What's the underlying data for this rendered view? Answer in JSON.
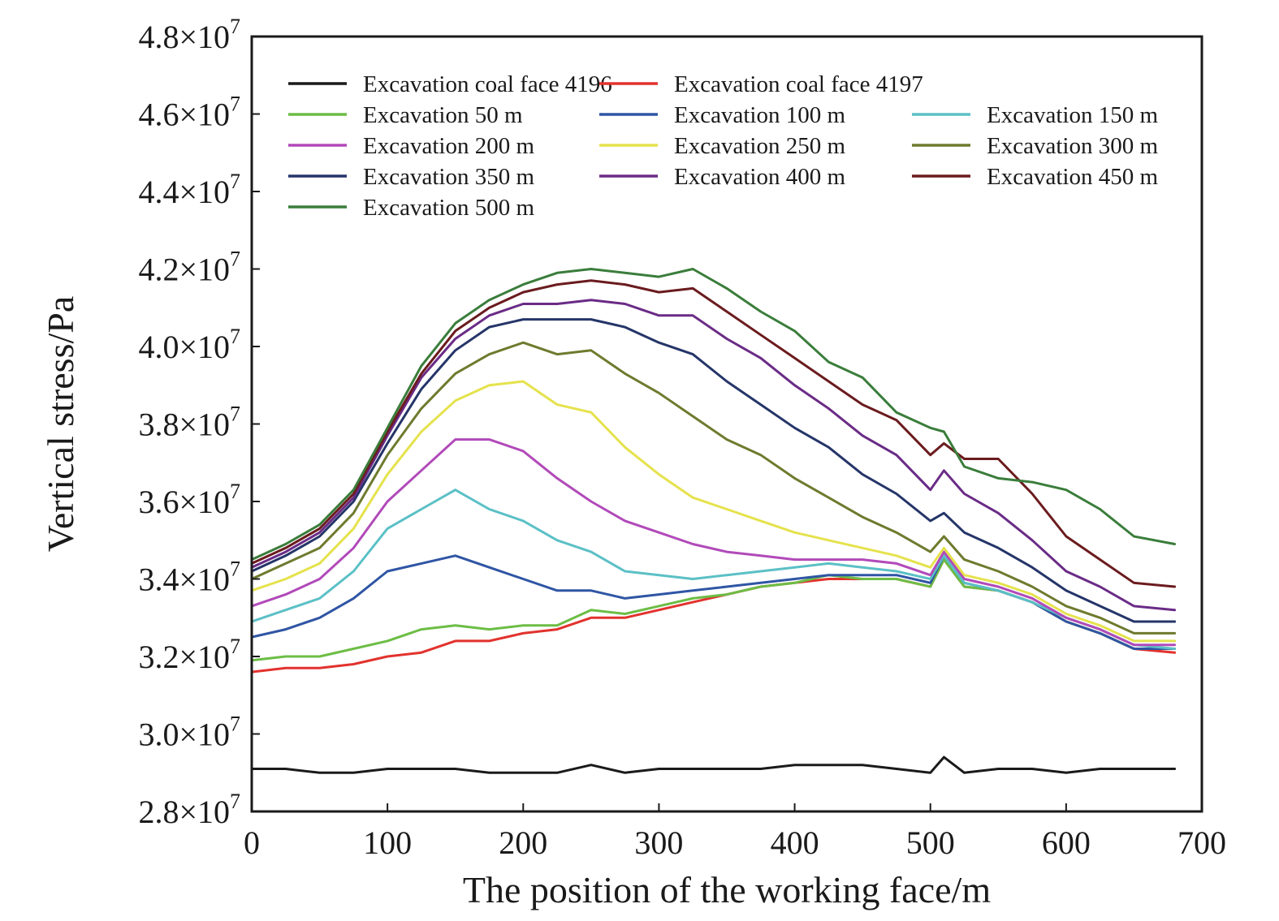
{
  "chart_data": {
    "type": "line",
    "xlabel": "The position of the working face/m",
    "ylabel": "Vertical stress/Pa",
    "xlim": [
      0,
      700
    ],
    "ylim": [
      28000000.0,
      48000000.0
    ],
    "x_ticks": [
      0,
      100,
      200,
      300,
      400,
      500,
      600,
      700
    ],
    "y_ticks": [
      28000000.0,
      30000000.0,
      32000000.0,
      34000000.0,
      36000000.0,
      38000000.0,
      40000000.0,
      42000000.0,
      44000000.0,
      46000000.0,
      48000000.0
    ],
    "y_tick_labels": [
      {
        "mantissa": "2.8×10",
        "exponent": "7"
      },
      {
        "mantissa": "3.0×10",
        "exponent": "7"
      },
      {
        "mantissa": "3.2×10",
        "exponent": "7"
      },
      {
        "mantissa": "3.4×10",
        "exponent": "7"
      },
      {
        "mantissa": "3.6×10",
        "exponent": "7"
      },
      {
        "mantissa": "3.8×10",
        "exponent": "7"
      },
      {
        "mantissa": "4.0×10",
        "exponent": "7"
      },
      {
        "mantissa": "4.2×10",
        "exponent": "7"
      },
      {
        "mantissa": "4.4×10",
        "exponent": "7"
      },
      {
        "mantissa": "4.6×10",
        "exponent": "7"
      },
      {
        "mantissa": "4.8×10",
        "exponent": "7"
      }
    ],
    "grid": false,
    "legend_position": "top-left",
    "x": [
      0,
      25,
      50,
      75,
      100,
      125,
      150,
      175,
      200,
      225,
      250,
      275,
      300,
      325,
      350,
      375,
      400,
      425,
      450,
      475,
      500,
      510,
      525,
      550,
      575,
      600,
      625,
      650,
      680
    ],
    "series": [
      {
        "name": "Excavation coal face 4196",
        "color": "#1a1a1a",
        "values": [
          29100000.0,
          29100000.0,
          29000000.0,
          29000000.0,
          29100000.0,
          29100000.0,
          29100000.0,
          29000000.0,
          29000000.0,
          29000000.0,
          29200000.0,
          29000000.0,
          29100000.0,
          29100000.0,
          29100000.0,
          29100000.0,
          29200000.0,
          29200000.0,
          29200000.0,
          29100000.0,
          29000000.0,
          29400000.0,
          29000000.0,
          29100000.0,
          29100000.0,
          29000000.0,
          29100000.0,
          29100000.0,
          29100000.0
        ]
      },
      {
        "name": "Excavation coal face 4197",
        "color": "#e2322d",
        "values": [
          31600000.0,
          31700000.0,
          31700000.0,
          31800000.0,
          32000000.0,
          32100000.0,
          32400000.0,
          32400000.0,
          32600000.0,
          32700000.0,
          33000000.0,
          33000000.0,
          33200000.0,
          33400000.0,
          33600000.0,
          33800000.0,
          33900000.0,
          34000000.0,
          34000000.0,
          34000000.0,
          33800000.0,
          34500000.0,
          33800000.0,
          33700000.0,
          33400000.0,
          32900000.0,
          32600000.0,
          32200000.0,
          32100000.0
        ]
      },
      {
        "name": "Excavation 50 m",
        "color": "#6cbd45",
        "values": [
          31900000.0,
          32000000.0,
          32000000.0,
          32200000.0,
          32400000.0,
          32700000.0,
          32800000.0,
          32700000.0,
          32800000.0,
          32800000.0,
          33200000.0,
          33100000.0,
          33300000.0,
          33500000.0,
          33600000.0,
          33800000.0,
          33900000.0,
          34100000.0,
          34000000.0,
          34000000.0,
          33800000.0,
          34500000.0,
          33800000.0,
          33700000.0,
          33400000.0,
          32900000.0,
          32600000.0,
          32200000.0,
          32200000.0
        ]
      },
      {
        "name": "Excavation 100 m",
        "color": "#2f55a4",
        "values": [
          32500000.0,
          32700000.0,
          33000000.0,
          33500000.0,
          34200000.0,
          34400000.0,
          34600000.0,
          34300000.0,
          34000000.0,
          33700000.0,
          33700000.0,
          33500000.0,
          33600000.0,
          33700000.0,
          33800000.0,
          33900000.0,
          34000000.0,
          34100000.0,
          34100000.0,
          34100000.0,
          33900000.0,
          34600000.0,
          33900000.0,
          33700000.0,
          33400000.0,
          32900000.0,
          32600000.0,
          32200000.0,
          32200000.0
        ]
      },
      {
        "name": "Excavation 150 m",
        "color": "#5bc0c6",
        "values": [
          32900000.0,
          33200000.0,
          33500000.0,
          34200000.0,
          35300000.0,
          35800000.0,
          36300000.0,
          35800000.0,
          35500000.0,
          35000000.0,
          34700000.0,
          34200000.0,
          34100000.0,
          34000000.0,
          34100000.0,
          34200000.0,
          34300000.0,
          34400000.0,
          34300000.0,
          34200000.0,
          34000000.0,
          34600000.0,
          33900000.0,
          33700000.0,
          33400000.0,
          33000000.0,
          32700000.0,
          32300000.0,
          32200000.0
        ]
      },
      {
        "name": "Excavation 200 m",
        "color": "#b14ab9",
        "values": [
          33300000.0,
          33600000.0,
          34000000.0,
          34800000.0,
          36000000.0,
          36800000.0,
          37600000.0,
          37600000.0,
          37300000.0,
          36600000.0,
          36000000.0,
          35500000.0,
          35200000.0,
          34900000.0,
          34700000.0,
          34600000.0,
          34500000.0,
          34500000.0,
          34500000.0,
          34400000.0,
          34100000.0,
          34700000.0,
          34000000.0,
          33800000.0,
          33500000.0,
          33000000.0,
          32700000.0,
          32300000.0,
          32300000.0
        ]
      },
      {
        "name": "Excavation 250 m",
        "color": "#e5e24d",
        "values": [
          33700000.0,
          34000000.0,
          34400000.0,
          35300000.0,
          36700000.0,
          37800000.0,
          38600000.0,
          39000000.0,
          39100000.0,
          38500000.0,
          38300000.0,
          37400000.0,
          36700000.0,
          36100000.0,
          35800000.0,
          35500000.0,
          35200000.0,
          35000000.0,
          34800000.0,
          34600000.0,
          34300000.0,
          34800000.0,
          34100000.0,
          33900000.0,
          33600000.0,
          33100000.0,
          32800000.0,
          32400000.0,
          32400000.0
        ]
      },
      {
        "name": "Excavation 300 m",
        "color": "#6f7a2e",
        "values": [
          34000000.0,
          34400000.0,
          34800000.0,
          35700000.0,
          37200000.0,
          38400000.0,
          39300000.0,
          39800000.0,
          40100000.0,
          39800000.0,
          39900000.0,
          39300000.0,
          38800000.0,
          38200000.0,
          37600000.0,
          37200000.0,
          36600000.0,
          36100000.0,
          35600000.0,
          35200000.0,
          34700000.0,
          35100000.0,
          34500000.0,
          34200000.0,
          33800000.0,
          33300000.0,
          33000000.0,
          32600000.0,
          32600000.0
        ]
      },
      {
        "name": "Excavation 350 m",
        "color": "#253569",
        "values": [
          34200000.0,
          34600000.0,
          35100000.0,
          36000000.0,
          37500000.0,
          38900000.0,
          39900000.0,
          40500000.0,
          40700000.0,
          40700000.0,
          40700000.0,
          40500000.0,
          40100000.0,
          39800000.0,
          39100000.0,
          38500000.0,
          37900000.0,
          37400000.0,
          36700000.0,
          36200000.0,
          35500000.0,
          35700000.0,
          35200000.0,
          34800000.0,
          34300000.0,
          33700000.0,
          33300000.0,
          32900000.0,
          32900000.0
        ]
      },
      {
        "name": "Excavation 400 m",
        "color": "#6a2b86",
        "values": [
          34300000.0,
          34700000.0,
          35200000.0,
          36100000.0,
          37700000.0,
          39200000.0,
          40200000.0,
          40800000.0,
          41100000.0,
          41100000.0,
          41200000.0,
          41100000.0,
          40800000.0,
          40800000.0,
          40200000.0,
          39700000.0,
          39000000.0,
          38400000.0,
          37700000.0,
          37200000.0,
          36300000.0,
          36800000.0,
          36200000.0,
          35700000.0,
          35000000.0,
          34200000.0,
          33800000.0,
          33300000.0,
          33200000.0
        ]
      },
      {
        "name": "Excavation 450 m",
        "color": "#6b1b1e",
        "values": [
          34400000.0,
          34800000.0,
          35300000.0,
          36200000.0,
          37800000.0,
          39300000.0,
          40400000.0,
          41000000.0,
          41400000.0,
          41600000.0,
          41700000.0,
          41600000.0,
          41400000.0,
          41500000.0,
          40900000.0,
          40300000.0,
          39700000.0,
          39100000.0,
          38500000.0,
          38100000.0,
          37200000.0,
          37500000.0,
          37100000.0,
          37100000.0,
          36200000.0,
          35100000.0,
          34500000.0,
          33900000.0,
          33800000.0
        ]
      },
      {
        "name": "Excavation 500 m",
        "color": "#3a7d3b",
        "values": [
          34500000.0,
          34900000.0,
          35400000.0,
          36300000.0,
          37900000.0,
          39500000.0,
          40600000.0,
          41200000.0,
          41600000.0,
          41900000.0,
          42000000.0,
          41900000.0,
          41800000.0,
          42000000.0,
          41500000.0,
          40900000.0,
          40400000.0,
          39600000.0,
          39200000.0,
          38300000.0,
          37900000.0,
          37800000.0,
          36900000.0,
          36600000.0,
          36500000.0,
          36300000.0,
          35800000.0,
          35100000.0,
          34900000.0
        ]
      }
    ]
  }
}
